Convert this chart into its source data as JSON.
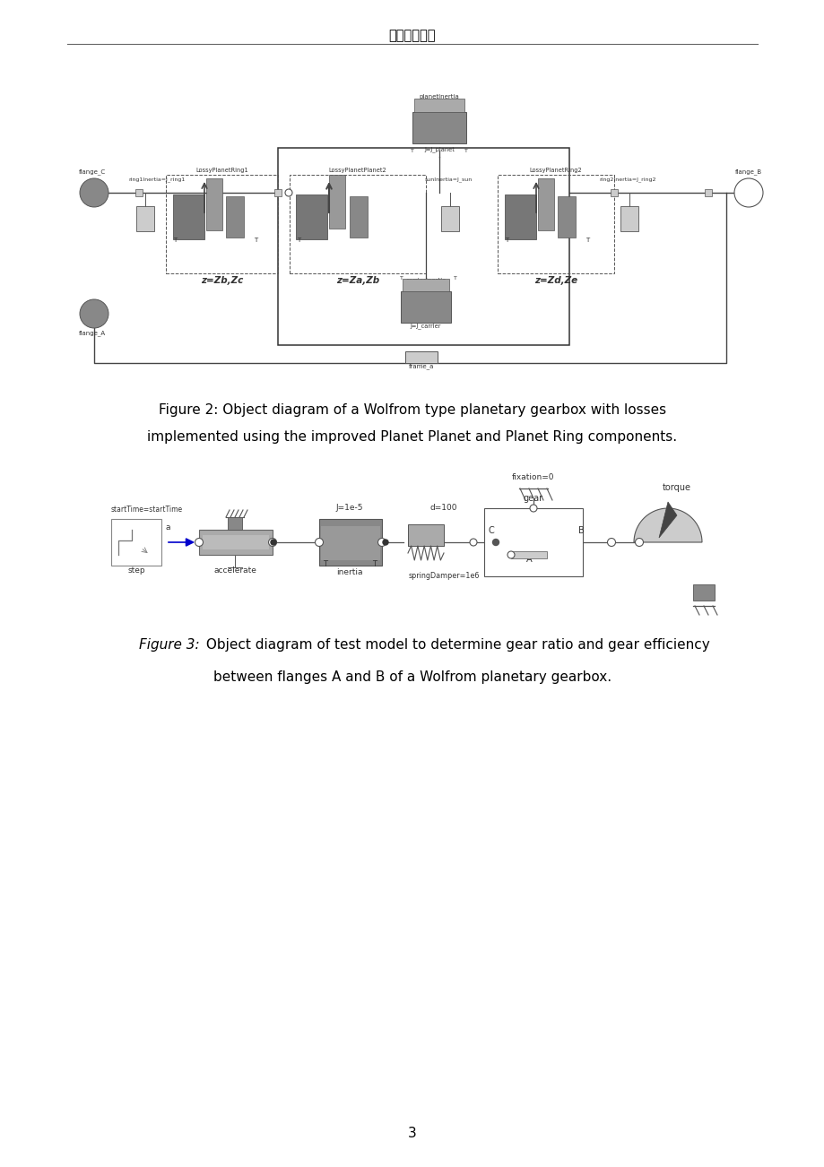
{
  "header_text": "外文文献译文",
  "page_number": "3",
  "fig2_caption_line1": "Figure 2: Object diagram of a Wolfrom type planetary gearbox with losses",
  "fig2_caption_line2": "implemented using the improved Planet Planet and Planet Ring components.",
  "fig3_caption_line1_italic": "Figure 3:",
  "fig3_caption_line1_normal": " Object diagram of test model to determine gear ratio and gear efficiency",
  "fig3_caption_line2": "between flanges A and B of a Wolfrom planetary gearbox.",
  "background_color": "#ffffff",
  "text_color": "#000000",
  "gray_dark": "#555555",
  "gray_med": "#888888",
  "gray_light": "#cccccc",
  "gray_lighter": "#e0e0e0",
  "blue_arrow": "#0000cc"
}
